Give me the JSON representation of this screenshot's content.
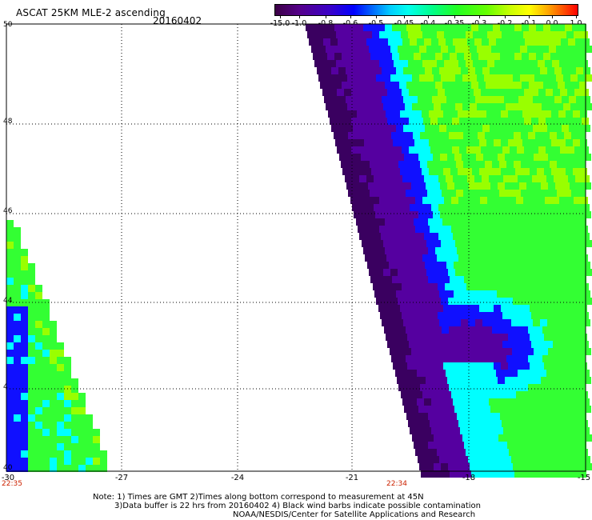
{
  "title": "ASCAT 25KM MLE-2 ascending",
  "date": "20160402",
  "colorbar": {
    "ticks": [
      "-15.0",
      "-1.0",
      "-0.8",
      "-0.6",
      "-0.5",
      "-0.45",
      "-0.4",
      "-0.35",
      "-0.3",
      "-0.2",
      "-0.1",
      "0.0",
      "1.0"
    ],
    "colors": [
      "#3b0045",
      "#55008a",
      "#3a00c8",
      "#0000ff",
      "#0055ff",
      "#00aaff",
      "#00ffff",
      "#00ffaa",
      "#00ff44",
      "#44ff00",
      "#aaff00",
      "#ffff00",
      "#ffaa00",
      "#ff5500",
      "#ff0000"
    ]
  },
  "axes": {
    "lat_labels": [
      "50",
      "48",
      "46",
      "44",
      "4",
      "40"
    ],
    "lon_labels": [
      "-30",
      "-27",
      "-24",
      "-21",
      "-18",
      "-15"
    ]
  },
  "times": [
    "22:35",
    "22:34"
  ],
  "notes": [
    "Note: 1) Times are GMT 2)Times along bottom correspond to measurement at 45N",
    "3)Data buffer is 22 hrs from 20160402 4) Black wind barbs indicate possible contamination",
    "NOAA/NESDIS/Center for Satellite Applications and Research"
  ],
  "legend_colors": {
    "deep": "#3a0060",
    "violet": "#5500a0",
    "blue": "#1010ff",
    "cyan": "#00ffff",
    "green": "#33ff33",
    "lime": "#99ff00"
  }
}
